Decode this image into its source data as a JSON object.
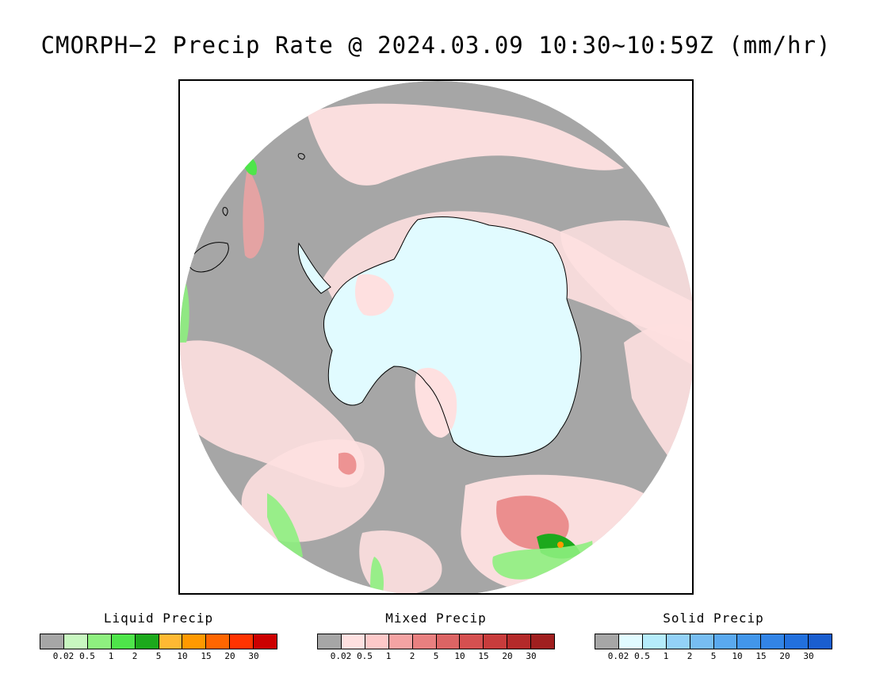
{
  "title": "CMORPH−2 Precip Rate @ 2024.03.09 10:30~10:59Z (mm/hr)",
  "map": {
    "background_colors": {
      "no_precip": "#a6a6a6",
      "outside": "#ffffff",
      "ice": "#e1fbff"
    }
  },
  "legends": [
    {
      "title": "Liquid Precip",
      "colors": [
        "#a6a6a6",
        "#c8f7c0",
        "#8ef07f",
        "#4ee54a",
        "#1ca91c",
        "#ffb933",
        "#ff9900",
        "#ff6600",
        "#ff3300",
        "#cc0000"
      ],
      "ticks": [
        "0.02",
        "0.5",
        "1",
        "2",
        "5",
        "10",
        "15",
        "20",
        "30"
      ]
    },
    {
      "title": "Mixed Precip",
      "colors": [
        "#a6a6a6",
        "#fee0e0",
        "#fdc9c9",
        "#f4a3a3",
        "#e88080",
        "#dc6464",
        "#d55050",
        "#c83c3c",
        "#b42a2a",
        "#a01f1f"
      ],
      "ticks": [
        "0.02",
        "0.5",
        "1",
        "2",
        "5",
        "10",
        "15",
        "20",
        "30"
      ]
    },
    {
      "title": "Solid Precip",
      "colors": [
        "#a6a6a6",
        "#e1fbff",
        "#b5ecfb",
        "#93d1f7",
        "#77bdf2",
        "#5aa9ef",
        "#4296ea",
        "#3284e6",
        "#2270dd",
        "#1a5ecf"
      ],
      "ticks": [
        "0.02",
        "0.5",
        "1",
        "2",
        "5",
        "10",
        "15",
        "20",
        "30"
      ]
    }
  ]
}
